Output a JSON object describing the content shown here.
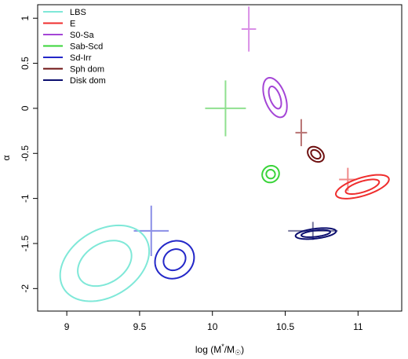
{
  "chart_data": {
    "type": "scatter",
    "xlabel": "log (M*/M☉)",
    "xlabel_parts": {
      "pre": "log (M",
      "sup": "*",
      "mid": "/M",
      "sub": "☉",
      "post": ")"
    },
    "ylabel": "α",
    "xlim": [
      8.8,
      11.3
    ],
    "ylim": [
      -2.25,
      1.15
    ],
    "x_ticks": [
      9,
      9.5,
      10,
      10.5,
      11
    ],
    "x_tick_labels": [
      "9",
      "9.5",
      "10",
      "10.5",
      "11"
    ],
    "y_ticks": [
      -2,
      -1.5,
      -1,
      -0.5,
      0,
      0.5,
      1
    ],
    "y_tick_labels": [
      "-2",
      "-1.5",
      "-1",
      "-0.5",
      "0",
      "0.5",
      "1"
    ],
    "grid": false,
    "legend_position": "top-left",
    "series": [
      {
        "name": "LBS",
        "color": "#7fe8d8",
        "ellipses": [
          {
            "x": 9.26,
            "y": -1.72,
            "rx": 0.2,
            "ry": 0.22,
            "angle": -0.55
          },
          {
            "x": 9.26,
            "y": -1.72,
            "rx": 0.33,
            "ry": 0.37,
            "angle": -0.55
          }
        ]
      },
      {
        "name": "E",
        "color": "#ef2d2d",
        "ellipses": [
          {
            "x": 11.03,
            "y": -0.87,
            "rx": 0.12,
            "ry": 0.06,
            "angle": -0.3
          },
          {
            "x": 11.03,
            "y": -0.87,
            "rx": 0.19,
            "ry": 0.1,
            "angle": -0.3
          }
        ]
      },
      {
        "name": "S0-Sa",
        "color": "#a445d6",
        "ellipses": [
          {
            "x": 10.43,
            "y": 0.12,
            "rx": 0.035,
            "ry": 0.13,
            "angle": -0.35
          },
          {
            "x": 10.43,
            "y": 0.12,
            "rx": 0.07,
            "ry": 0.23,
            "angle": -0.35
          }
        ]
      },
      {
        "name": "Sab-Scd",
        "color": "#39d439",
        "ellipses": [
          {
            "x": 10.4,
            "y": -0.73,
            "rx": 0.03,
            "ry": 0.05,
            "angle": -0.7
          },
          {
            "x": 10.4,
            "y": -0.73,
            "rx": 0.06,
            "ry": 0.09,
            "angle": -0.7
          }
        ]
      },
      {
        "name": "Sd-Irr",
        "color": "#2327c8",
        "ellipses": [
          {
            "x": 9.74,
            "y": -1.68,
            "rx": 0.08,
            "ry": 0.11,
            "angle": -0.65
          },
          {
            "x": 9.74,
            "y": -1.68,
            "rx": 0.14,
            "ry": 0.2,
            "angle": -0.65
          }
        ]
      },
      {
        "name": "Sph dom",
        "color": "#6e1010",
        "ellipses": [
          {
            "x": 10.71,
            "y": -0.51,
            "rx": 0.025,
            "ry": 0.06,
            "angle": -0.9
          },
          {
            "x": 10.71,
            "y": -0.51,
            "rx": 0.045,
            "ry": 0.1,
            "angle": -0.9
          }
        ]
      },
      {
        "name": "Disk dom",
        "color": "#0b0e6e",
        "ellipses": [
          {
            "x": 10.71,
            "y": -1.39,
            "rx": 0.1,
            "ry": 0.035,
            "angle": -0.12
          },
          {
            "x": 10.71,
            "y": -1.39,
            "rx": 0.14,
            "ry": 0.055,
            "angle": -0.12
          }
        ]
      }
    ],
    "crosses": [
      {
        "x": 10.25,
        "y": 0.88,
        "xerr": 0.05,
        "yerr": 0.25,
        "color": "#d98ee6"
      },
      {
        "x": 10.09,
        "y": 0.0,
        "xerr": 0.14,
        "yerr": 0.31,
        "color": "#8fe08f"
      },
      {
        "x": 10.61,
        "y": -0.27,
        "xerr": 0.04,
        "yerr": 0.15,
        "color": "#b87373"
      },
      {
        "x": 10.93,
        "y": -0.79,
        "xerr": 0.06,
        "yerr": 0.13,
        "color": "#ef8a8a"
      },
      {
        "x": 9.58,
        "y": -1.36,
        "xerr": 0.12,
        "yerr": 0.28,
        "color": "#8a8ee6"
      },
      {
        "x": 10.69,
        "y": -1.36,
        "xerr": 0.17,
        "yerr": 0.1,
        "color": "#7a7a9e"
      }
    ]
  }
}
